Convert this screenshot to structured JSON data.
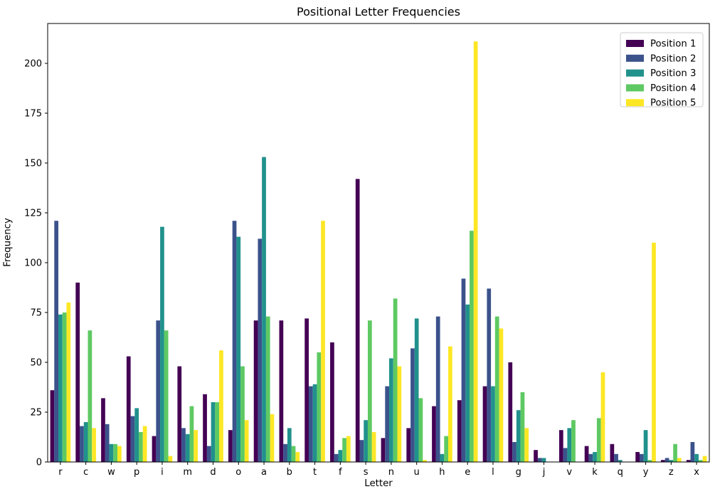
{
  "title": "Positional Letter Frequencies",
  "chart_data": {
    "type": "bar",
    "title": "Positional Letter Frequencies",
    "xlabel": "Letter",
    "ylabel": "Frequency",
    "categories": [
      "r",
      "c",
      "w",
      "p",
      "i",
      "m",
      "d",
      "o",
      "a",
      "b",
      "t",
      "f",
      "s",
      "n",
      "u",
      "h",
      "e",
      "l",
      "g",
      "j",
      "v",
      "k",
      "q",
      "y",
      "z",
      "x"
    ],
    "series": [
      {
        "name": "Position 1",
        "color": "#440154",
        "values": [
          36,
          90,
          32,
          53,
          13,
          48,
          34,
          16,
          71,
          71,
          72,
          60,
          142,
          12,
          17,
          28,
          31,
          38,
          50,
          6,
          16,
          8,
          9,
          5,
          1,
          1
        ]
      },
      {
        "name": "Position 2",
        "color": "#3b528b",
        "values": [
          121,
          18,
          19,
          23,
          71,
          17,
          8,
          121,
          112,
          9,
          38,
          4,
          11,
          38,
          57,
          73,
          92,
          87,
          10,
          2,
          7,
          4,
          4,
          4,
          2,
          10
        ]
      },
      {
        "name": "Position 3",
        "color": "#21918c",
        "values": [
          74,
          20,
          9,
          27,
          118,
          14,
          30,
          113,
          153,
          17,
          39,
          6,
          21,
          52,
          72,
          4,
          79,
          38,
          26,
          2,
          17,
          5,
          1,
          16,
          1,
          4
        ]
      },
      {
        "name": "Position 4",
        "color": "#5ec962",
        "values": [
          75,
          66,
          9,
          15,
          66,
          28,
          30,
          48,
          73,
          8,
          55,
          12,
          71,
          82,
          32,
          13,
          116,
          73,
          35,
          0,
          21,
          22,
          0,
          1,
          9,
          1
        ]
      },
      {
        "name": "Position 5",
        "color": "#fde725",
        "values": [
          80,
          17,
          8,
          18,
          3,
          16,
          56,
          21,
          24,
          5,
          121,
          13,
          15,
          48,
          1,
          58,
          211,
          67,
          17,
          0,
          0,
          45,
          0,
          110,
          2,
          3
        ]
      }
    ],
    "ylim": [
      0,
      220
    ],
    "yticks": [
      0,
      25,
      50,
      75,
      100,
      125,
      150,
      175,
      200
    ],
    "grid": false,
    "legend": {
      "position": "upper right",
      "entries": [
        "Position 1",
        "Position 2",
        "Position 3",
        "Position 4",
        "Position 5"
      ]
    }
  }
}
